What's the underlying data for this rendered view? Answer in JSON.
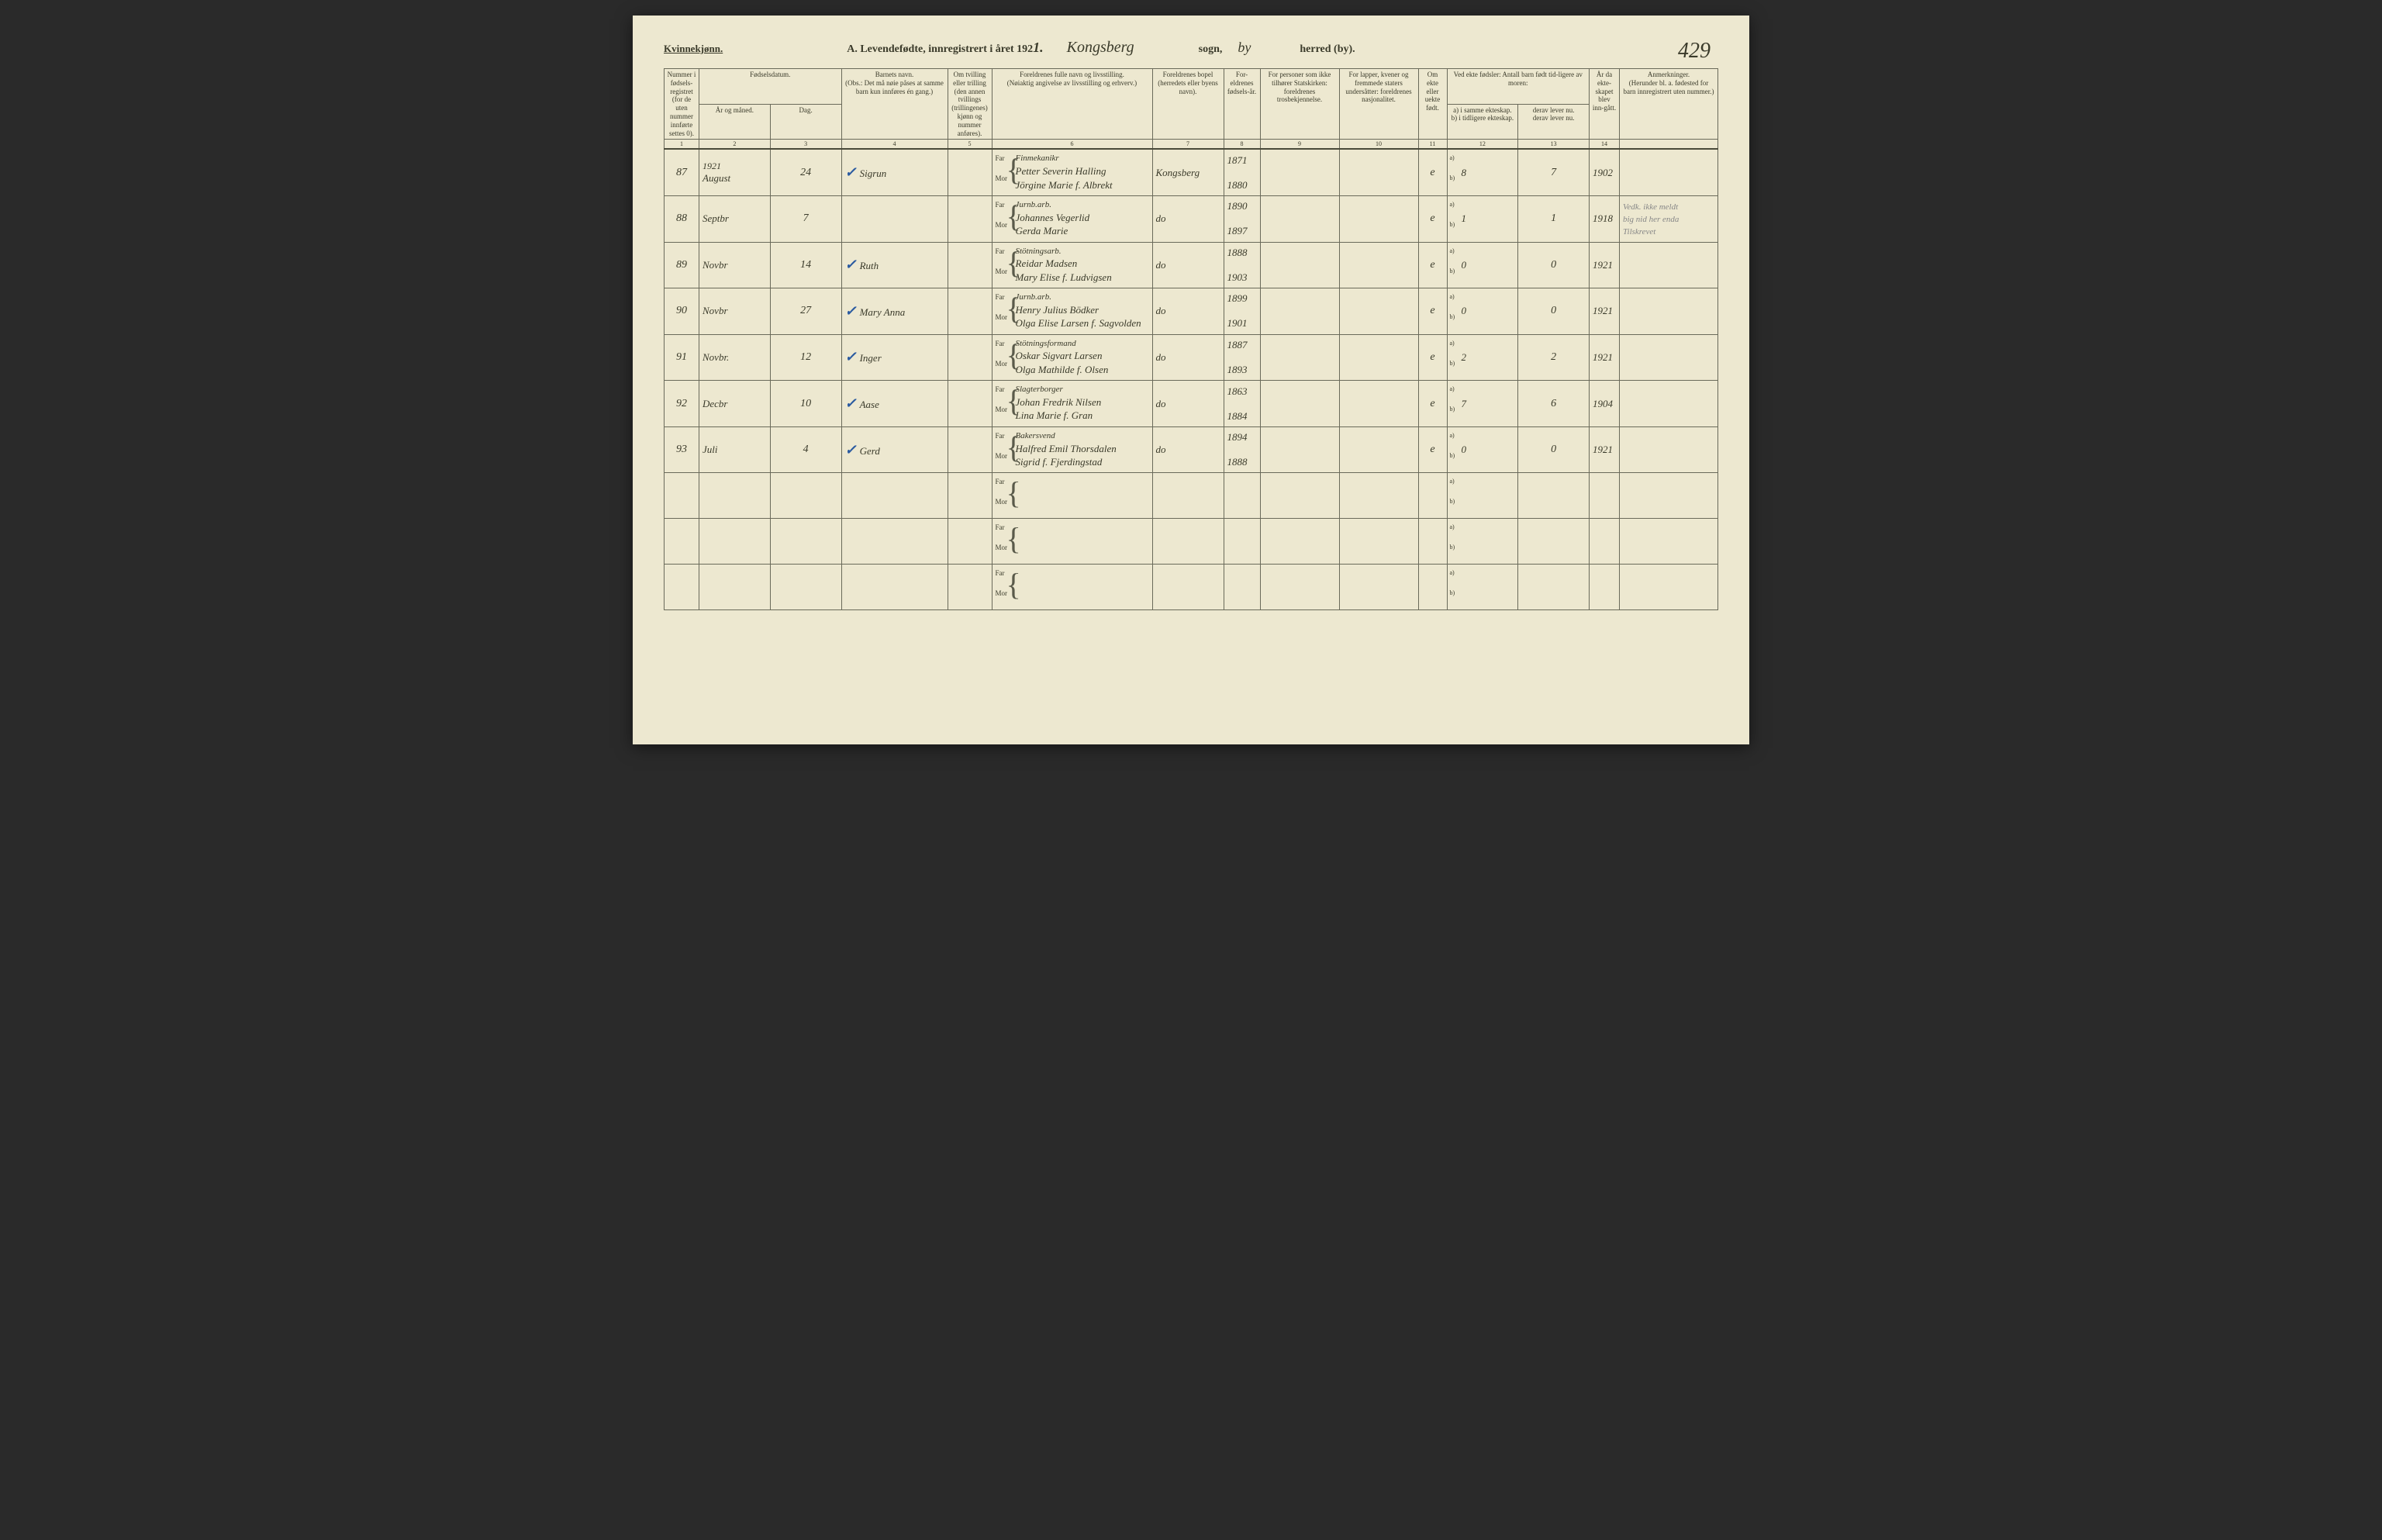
{
  "header": {
    "gender": "Kvinnekjønn.",
    "title_prefix": "A.  Levendefødte, innregistrert i året 192",
    "year_suffix": "1.",
    "sogn_value": "Kongsberg",
    "sogn_label": "sogn,",
    "herred_value": "by",
    "herred_label": "herred (by).",
    "page_number": "429"
  },
  "columns": {
    "c1": "Nummer i fødsels-registret (for de uten nummer innførte settes 0).",
    "c2": "Fødselsdatum.",
    "c2a": "År og måned.",
    "c2b": "Dag.",
    "c4": "Barnets navn.",
    "c4_note": "(Obs.: Det må nøie påses at samme barn kun innføres én gang.)",
    "c5": "Om tvilling eller trilling (den annen tvillings (trillingenes) kjønn og nummer anføres).",
    "c6": "Foreldrenes fulle navn og livsstilling.",
    "c6_note": "(Nøiaktig angivelse av livsstilling og erhverv.)",
    "c7": "Foreldrenes bopel",
    "c7_note": "(herredets eller byens navn).",
    "c8": "For-eldrenes fødsels-år.",
    "c9": "For personer som ikke tilhører Statskirken: foreldrenes trosbekjennelse.",
    "c10": "For lapper, kvener og fremmede staters undersåtter: foreldrenes nasjonalitet.",
    "c11": "Om ekte eller uekte født.",
    "c12": "Ved ekte fødsler: Antall barn født tid-ligere av moren:",
    "c12a": "a) i samme ekteskap.",
    "c12a2": "b) i tidligere ekteskap.",
    "c13a": "derav lever nu.",
    "c13b": "derav lever nu.",
    "c14": "År da ekte-skapet blev inn-gått.",
    "c15": "Anmerkninger.",
    "c15_note": "(Herunder bl. a. fødested for barn innregistrert uten nummer.)"
  },
  "colnums": [
    "1",
    "2",
    "3",
    "4",
    "5",
    "6",
    "7",
    "8",
    "9",
    "10",
    "11",
    "12",
    "13",
    "14",
    ""
  ],
  "rows": [
    {
      "num": "87",
      "year_text": "1921",
      "month": "August",
      "day": "24",
      "check": true,
      "child": "Sigrun",
      "far_occ": "Finmekanikr",
      "far": "Petter Severin Halling",
      "mor": "Jörgine Marie f. Albrekt",
      "bopel": "Kongsberg",
      "far_year": "1871",
      "mor_year": "1880",
      "ekte": "e",
      "a_val": "8",
      "lever": "7",
      "aar": "1902",
      "anm": ""
    },
    {
      "num": "88",
      "month": "Septbr",
      "day": "7",
      "check": false,
      "child": "",
      "far_occ": "Jurnb.arb.",
      "far": "Johannes Vegerlid",
      "mor": "Gerda Marie",
      "bopel": "do",
      "far_year": "1890",
      "mor_year": "1897",
      "ekte": "e",
      "a_val": "1",
      "lever": "1",
      "aar": "1918",
      "anm": "Vedk. ikke meldt",
      "anm2": "big nid her enda",
      "anm3": "Tilskrevet"
    },
    {
      "num": "89",
      "month": "Novbr",
      "day": "14",
      "check": true,
      "child": "Ruth",
      "far_occ": "Stötningsarb.",
      "far": "Reidar Madsen",
      "mor": "Mary Elise f. Ludvigsen",
      "bopel": "do",
      "far_year": "1888",
      "mor_year": "1903",
      "ekte": "e",
      "a_val": "0",
      "lever": "0",
      "aar": "1921",
      "anm": ""
    },
    {
      "num": "90",
      "month": "Novbr",
      "day": "27",
      "check": true,
      "child": "Mary Anna",
      "far_occ": "Jurnb.arb.",
      "far": "Henry Julius Bödker",
      "mor": "Olga Elise Larsen f. Sagvolden",
      "bopel": "do",
      "far_year": "1899",
      "mor_year": "1901",
      "ekte": "e",
      "a_val": "0",
      "lever": "0",
      "aar": "1921",
      "anm": ""
    },
    {
      "num": "91",
      "month": "Novbr.",
      "day": "12",
      "check": true,
      "child": "Inger",
      "far_occ": "Stötningsformand",
      "far": "Oskar Sigvart Larsen",
      "mor": "Olga Mathilde f. Olsen",
      "bopel": "do",
      "far_year": "1887",
      "mor_year": "1893",
      "ekte": "e",
      "a_val": "2",
      "lever": "2",
      "aar": "1921",
      "anm": ""
    },
    {
      "num": "92",
      "month": "Decbr",
      "day": "10",
      "check": true,
      "child": "Aase",
      "far_occ": "Slagterborger",
      "far": "Johan Fredrik Nilsen",
      "mor": "Lina Marie f. Gran",
      "bopel": "do",
      "far_year": "1863",
      "mor_year": "1884",
      "ekte": "e",
      "a_val": "7",
      "lever": "6",
      "aar": "1904",
      "anm": ""
    },
    {
      "num": "93",
      "month": "Juli",
      "day": "4",
      "check": true,
      "child": "Gerd",
      "far_occ": "Bakersvend",
      "far": "Halfred Emil Thorsdalen",
      "mor": "Sigrid f. Fjerdingstad",
      "bopel": "do",
      "far_year": "1894",
      "mor_year": "1888",
      "ekte": "e",
      "a_val": "0",
      "lever": "0",
      "aar": "1921",
      "anm": ""
    },
    {
      "empty": true
    },
    {
      "empty": true
    },
    {
      "empty": true
    }
  ],
  "labels": {
    "far": "Far",
    "mor": "Mor",
    "a": "a)",
    "b": "b)"
  }
}
